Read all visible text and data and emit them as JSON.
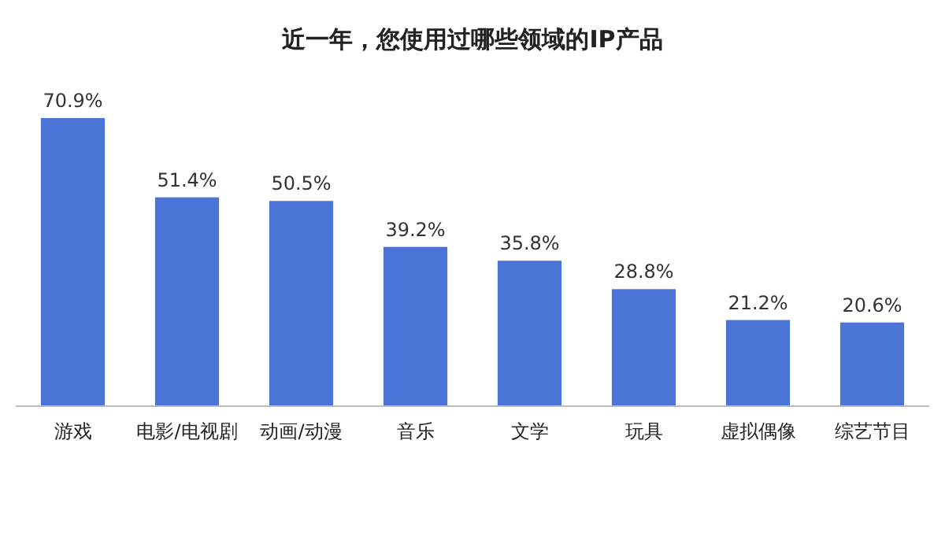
{
  "chart_data": {
    "type": "bar",
    "title": "近一年，您使用过哪些领域的IP产品",
    "categories": [
      "游戏",
      "电影/电视剧",
      "动画/动漫",
      "音乐",
      "文学",
      "玩具",
      "虚拟偶像",
      "综艺节目"
    ],
    "values": [
      70.9,
      51.4,
      50.5,
      39.2,
      35.8,
      28.8,
      21.2,
      20.6
    ],
    "value_labels": [
      "70.9%",
      "51.4%",
      "50.5%",
      "39.2%",
      "35.8%",
      "28.8%",
      "21.2%",
      "20.6%"
    ],
    "color": "#4a74d6"
  }
}
